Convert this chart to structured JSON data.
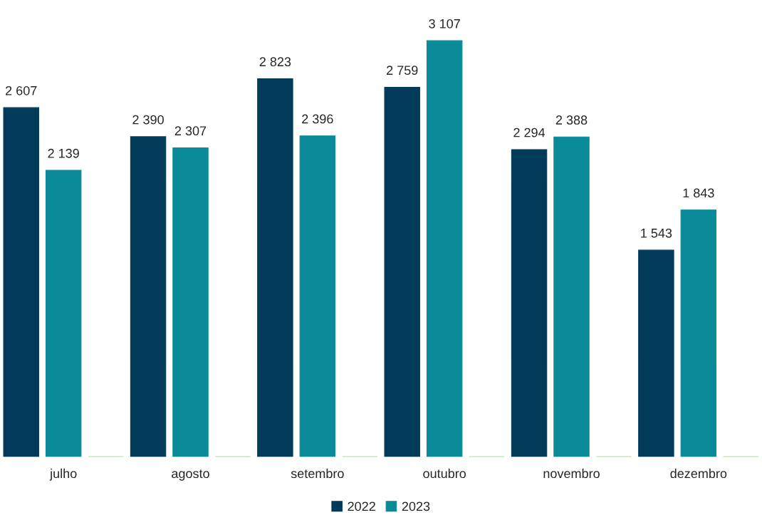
{
  "chart_data": {
    "type": "bar",
    "categories": [
      "julho",
      "agosto",
      "setembro",
      "outubro",
      "novembro",
      "dezembro"
    ],
    "series": [
      {
        "name": "2022",
        "color": "#023b59",
        "values": [
          2607,
          2390,
          2823,
          2759,
          2294,
          1543
        ],
        "value_labels": [
          "2 607",
          "2 390",
          "2 823",
          "2 759",
          "2 294",
          "1 543"
        ]
      },
      {
        "name": "2023",
        "color": "#0b8a99",
        "values": [
          2139,
          2307,
          2396,
          3107,
          2388,
          1843
        ],
        "value_labels": [
          "2 139",
          "2 307",
          "2 396",
          "3 107",
          "2 388",
          "1 843"
        ]
      },
      {
        "color": "#4ea72e",
        "values": [
          0,
          0,
          0,
          0,
          0,
          0
        ]
      }
    ],
    "legend": "bottom",
    "grid": false
  }
}
